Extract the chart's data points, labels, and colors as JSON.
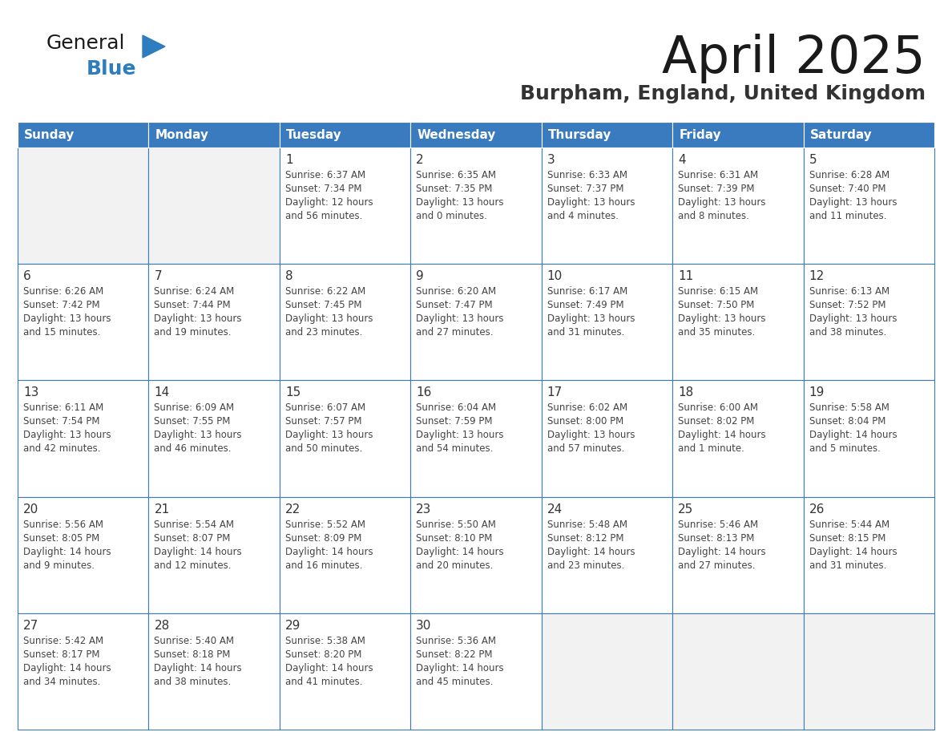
{
  "title": "April 2025",
  "subtitle": "Burpham, England, United Kingdom",
  "header_bg": "#3a7bbf",
  "header_text": "#ffffff",
  "cell_bg": "#ffffff",
  "cell_bg_empty": "#f2f2f2",
  "cell_border": "#3a7bbf",
  "day_number_color": "#333333",
  "cell_text_color": "#444444",
  "title_color": "#1a1a1a",
  "subtitle_color": "#333333",
  "logo_general_color": "#1a1a1a",
  "logo_blue_color": "#2e7dbf",
  "day_headers": [
    "Sunday",
    "Monday",
    "Tuesday",
    "Wednesday",
    "Thursday",
    "Friday",
    "Saturday"
  ],
  "weeks": [
    [
      {
        "day": "",
        "info": ""
      },
      {
        "day": "",
        "info": ""
      },
      {
        "day": "1",
        "info": "Sunrise: 6:37 AM\nSunset: 7:34 PM\nDaylight: 12 hours\nand 56 minutes."
      },
      {
        "day": "2",
        "info": "Sunrise: 6:35 AM\nSunset: 7:35 PM\nDaylight: 13 hours\nand 0 minutes."
      },
      {
        "day": "3",
        "info": "Sunrise: 6:33 AM\nSunset: 7:37 PM\nDaylight: 13 hours\nand 4 minutes."
      },
      {
        "day": "4",
        "info": "Sunrise: 6:31 AM\nSunset: 7:39 PM\nDaylight: 13 hours\nand 8 minutes."
      },
      {
        "day": "5",
        "info": "Sunrise: 6:28 AM\nSunset: 7:40 PM\nDaylight: 13 hours\nand 11 minutes."
      }
    ],
    [
      {
        "day": "6",
        "info": "Sunrise: 6:26 AM\nSunset: 7:42 PM\nDaylight: 13 hours\nand 15 minutes."
      },
      {
        "day": "7",
        "info": "Sunrise: 6:24 AM\nSunset: 7:44 PM\nDaylight: 13 hours\nand 19 minutes."
      },
      {
        "day": "8",
        "info": "Sunrise: 6:22 AM\nSunset: 7:45 PM\nDaylight: 13 hours\nand 23 minutes."
      },
      {
        "day": "9",
        "info": "Sunrise: 6:20 AM\nSunset: 7:47 PM\nDaylight: 13 hours\nand 27 minutes."
      },
      {
        "day": "10",
        "info": "Sunrise: 6:17 AM\nSunset: 7:49 PM\nDaylight: 13 hours\nand 31 minutes."
      },
      {
        "day": "11",
        "info": "Sunrise: 6:15 AM\nSunset: 7:50 PM\nDaylight: 13 hours\nand 35 minutes."
      },
      {
        "day": "12",
        "info": "Sunrise: 6:13 AM\nSunset: 7:52 PM\nDaylight: 13 hours\nand 38 minutes."
      }
    ],
    [
      {
        "day": "13",
        "info": "Sunrise: 6:11 AM\nSunset: 7:54 PM\nDaylight: 13 hours\nand 42 minutes."
      },
      {
        "day": "14",
        "info": "Sunrise: 6:09 AM\nSunset: 7:55 PM\nDaylight: 13 hours\nand 46 minutes."
      },
      {
        "day": "15",
        "info": "Sunrise: 6:07 AM\nSunset: 7:57 PM\nDaylight: 13 hours\nand 50 minutes."
      },
      {
        "day": "16",
        "info": "Sunrise: 6:04 AM\nSunset: 7:59 PM\nDaylight: 13 hours\nand 54 minutes."
      },
      {
        "day": "17",
        "info": "Sunrise: 6:02 AM\nSunset: 8:00 PM\nDaylight: 13 hours\nand 57 minutes."
      },
      {
        "day": "18",
        "info": "Sunrise: 6:00 AM\nSunset: 8:02 PM\nDaylight: 14 hours\nand 1 minute."
      },
      {
        "day": "19",
        "info": "Sunrise: 5:58 AM\nSunset: 8:04 PM\nDaylight: 14 hours\nand 5 minutes."
      }
    ],
    [
      {
        "day": "20",
        "info": "Sunrise: 5:56 AM\nSunset: 8:05 PM\nDaylight: 14 hours\nand 9 minutes."
      },
      {
        "day": "21",
        "info": "Sunrise: 5:54 AM\nSunset: 8:07 PM\nDaylight: 14 hours\nand 12 minutes."
      },
      {
        "day": "22",
        "info": "Sunrise: 5:52 AM\nSunset: 8:09 PM\nDaylight: 14 hours\nand 16 minutes."
      },
      {
        "day": "23",
        "info": "Sunrise: 5:50 AM\nSunset: 8:10 PM\nDaylight: 14 hours\nand 20 minutes."
      },
      {
        "day": "24",
        "info": "Sunrise: 5:48 AM\nSunset: 8:12 PM\nDaylight: 14 hours\nand 23 minutes."
      },
      {
        "day": "25",
        "info": "Sunrise: 5:46 AM\nSunset: 8:13 PM\nDaylight: 14 hours\nand 27 minutes."
      },
      {
        "day": "26",
        "info": "Sunrise: 5:44 AM\nSunset: 8:15 PM\nDaylight: 14 hours\nand 31 minutes."
      }
    ],
    [
      {
        "day": "27",
        "info": "Sunrise: 5:42 AM\nSunset: 8:17 PM\nDaylight: 14 hours\nand 34 minutes."
      },
      {
        "day": "28",
        "info": "Sunrise: 5:40 AM\nSunset: 8:18 PM\nDaylight: 14 hours\nand 38 minutes."
      },
      {
        "day": "29",
        "info": "Sunrise: 5:38 AM\nSunset: 8:20 PM\nDaylight: 14 hours\nand 41 minutes."
      },
      {
        "day": "30",
        "info": "Sunrise: 5:36 AM\nSunset: 8:22 PM\nDaylight: 14 hours\nand 45 minutes."
      },
      {
        "day": "",
        "info": ""
      },
      {
        "day": "",
        "info": ""
      },
      {
        "day": "",
        "info": ""
      }
    ]
  ]
}
